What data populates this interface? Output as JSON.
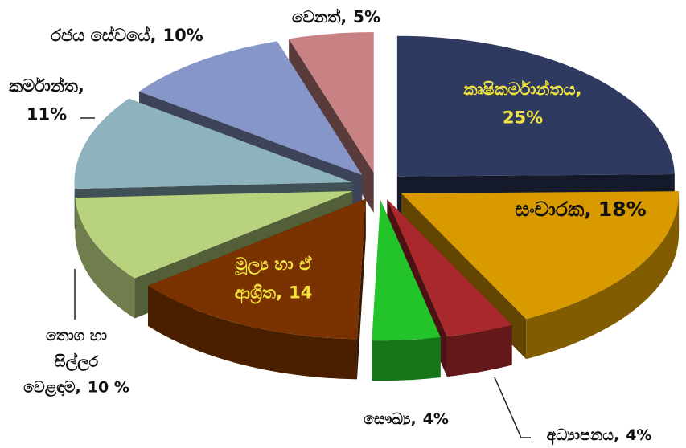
{
  "chart_data": {
    "type": "pie3d",
    "categories": [
      [
        "කෘෂිකර්මාන්තය,"
      ],
      [
        "සංචාරක,"
      ],
      [
        "අධ්‍යාපනය,"
      ],
      [
        "සෞඛ්‍ය,"
      ],
      [
        "මූල්‍ය හා ඒ",
        "ආශ්‍රිත,"
      ],
      [
        "තොග හා",
        "සිල්ලර",
        "වෙළඳාම,"
      ],
      [
        "කර්මාන්ත,"
      ],
      [
        "රජය සේවයේ,"
      ],
      [
        "වෙනත්,"
      ]
    ],
    "values": [
      25,
      18,
      4,
      4,
      14,
      10,
      11,
      10,
      5
    ],
    "value_labels": [
      "25%",
      "18%",
      "4%",
      "4%",
      "14",
      "10 %",
      "11%",
      "10%",
      "5%"
    ],
    "colors": [
      "#2e3a60",
      "#d99a00",
      "#a8282b",
      "#22c42a",
      "#7a3300",
      "#b9d27e",
      "#8fb3be",
      "#8796c8",
      "#c98283"
    ]
  }
}
